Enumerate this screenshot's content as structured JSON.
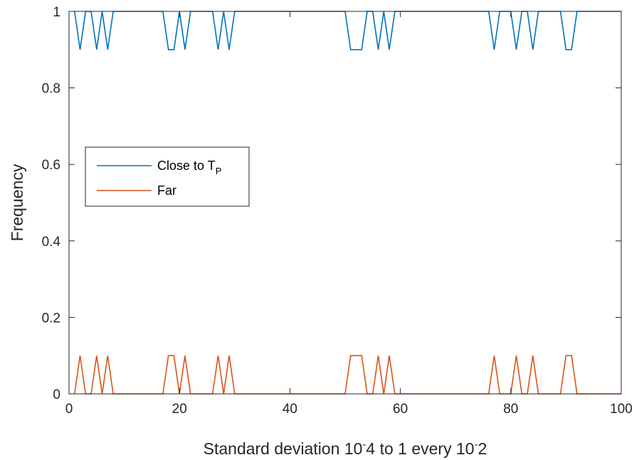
{
  "chart_data": {
    "type": "line",
    "title": "",
    "xlabel": "Standard deviation 10^-4 to 1 every 10^-2",
    "ylabel": "Frequency",
    "xlim": [
      0,
      100
    ],
    "ylim": [
      0,
      1
    ],
    "x_ticks": [
      0,
      20,
      40,
      60,
      80,
      100
    ],
    "y_ticks": [
      0,
      0.2,
      0.4,
      0.6,
      0.8,
      1
    ],
    "x_tick_labels": [
      "0",
      "20",
      "40",
      "60",
      "80",
      "100"
    ],
    "y_tick_labels": [
      "0",
      "0.2",
      "0.4",
      "0.6",
      "0.8",
      "1"
    ],
    "grid": false,
    "legend_position": "left",
    "x": [
      1,
      2,
      3,
      4,
      5,
      6,
      7,
      8,
      9,
      10,
      11,
      12,
      13,
      14,
      15,
      16,
      17,
      18,
      19,
      20,
      21,
      22,
      23,
      24,
      25,
      26,
      27,
      28,
      29,
      30,
      31,
      32,
      33,
      34,
      35,
      36,
      37,
      38,
      39,
      40,
      41,
      42,
      43,
      44,
      45,
      46,
      47,
      48,
      49,
      50,
      51,
      52,
      53,
      54,
      55,
      56,
      57,
      58,
      59,
      60,
      61,
      62,
      63,
      64,
      65,
      66,
      67,
      68,
      69,
      70,
      71,
      72,
      73,
      74,
      75,
      76,
      77,
      78,
      79,
      80,
      81,
      82,
      83,
      84,
      85,
      86,
      87,
      88,
      89,
      90,
      91,
      92,
      93,
      94,
      95,
      96,
      97,
      98,
      99,
      100
    ],
    "series": [
      {
        "name": "Close to T_P",
        "name_main": "Close to T",
        "name_sub": "P",
        "color": "#0072BD",
        "values": [
          1,
          0.9,
          1,
          1,
          0.9,
          1,
          0.9,
          1,
          1,
          1,
          1,
          1,
          1,
          1,
          1,
          1,
          1,
          0.9,
          0.9,
          1,
          0.9,
          1,
          1,
          1,
          1,
          1,
          0.9,
          1,
          0.9,
          1,
          1,
          1,
          1,
          1,
          1,
          1,
          1,
          1,
          1,
          1,
          1,
          1,
          1,
          1,
          1,
          1,
          1,
          1,
          1,
          1,
          0.9,
          0.9,
          0.9,
          1,
          1,
          0.9,
          1,
          0.9,
          1,
          1,
          1,
          1,
          1,
          1,
          1,
          1,
          1,
          1,
          1,
          1,
          1,
          1,
          1,
          1,
          1,
          1,
          0.9,
          1,
          1,
          1,
          0.9,
          1,
          1,
          0.9,
          1,
          1,
          1,
          1,
          1,
          0.9,
          0.9,
          1,
          1,
          1,
          1,
          1,
          1,
          1,
          1,
          1
        ]
      },
      {
        "name": "Far",
        "color": "#D95319",
        "values": [
          0,
          0.1,
          0,
          0,
          0.1,
          0,
          0.1,
          0,
          0,
          0,
          0,
          0,
          0,
          0,
          0,
          0,
          0,
          0.1,
          0.1,
          0,
          0.1,
          0,
          0,
          0,
          0,
          0,
          0.1,
          0,
          0.1,
          0,
          0,
          0,
          0,
          0,
          0,
          0,
          0,
          0,
          0,
          0,
          0,
          0,
          0,
          0,
          0,
          0,
          0,
          0,
          0,
          0,
          0.1,
          0.1,
          0.1,
          0,
          0,
          0.1,
          0,
          0.1,
          0,
          0,
          0,
          0,
          0,
          0,
          0,
          0,
          0,
          0,
          0,
          0,
          0,
          0,
          0,
          0,
          0,
          0,
          0.1,
          0,
          0,
          0,
          0.1,
          0,
          0,
          0.1,
          0,
          0,
          0,
          0,
          0,
          0.1,
          0.1,
          0,
          0,
          0,
          0,
          0,
          0,
          0,
          0,
          0
        ]
      }
    ]
  }
}
